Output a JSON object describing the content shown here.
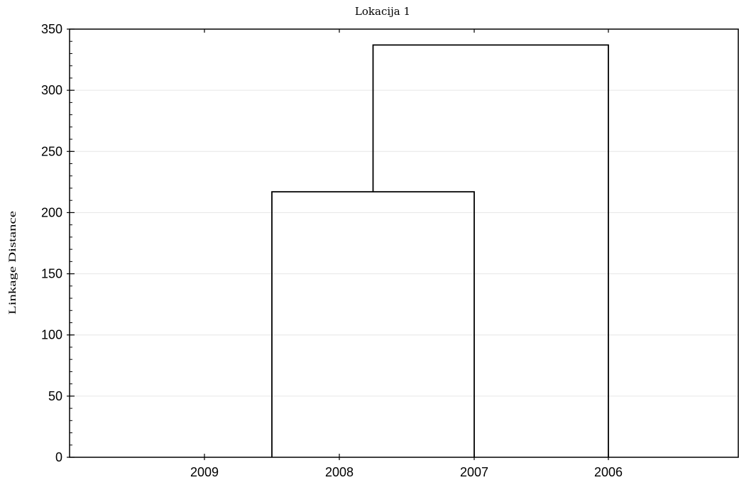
{
  "chart_data": {
    "type": "dendrogram",
    "title": "Lokacija 1",
    "xlabel": "",
    "ylabel": "Linkage Distance",
    "ylim": [
      0,
      350
    ],
    "y_ticks": [
      0,
      50,
      100,
      150,
      200,
      250,
      300,
      350
    ],
    "y_tick_labels": [
      "0",
      "50",
      "100",
      "150",
      "200",
      "250",
      "300",
      "350"
    ],
    "leaves": [
      "2009",
      "2008",
      "2007",
      "2006"
    ],
    "merges": [
      {
        "left": "2008",
        "right": "2007",
        "distance": 217
      },
      {
        "left": "2008+2007",
        "right": "2006",
        "distance": 337
      }
    ],
    "grid": "horizontal",
    "line_color": "#000000",
    "grid_color": "#e6e6e6"
  }
}
